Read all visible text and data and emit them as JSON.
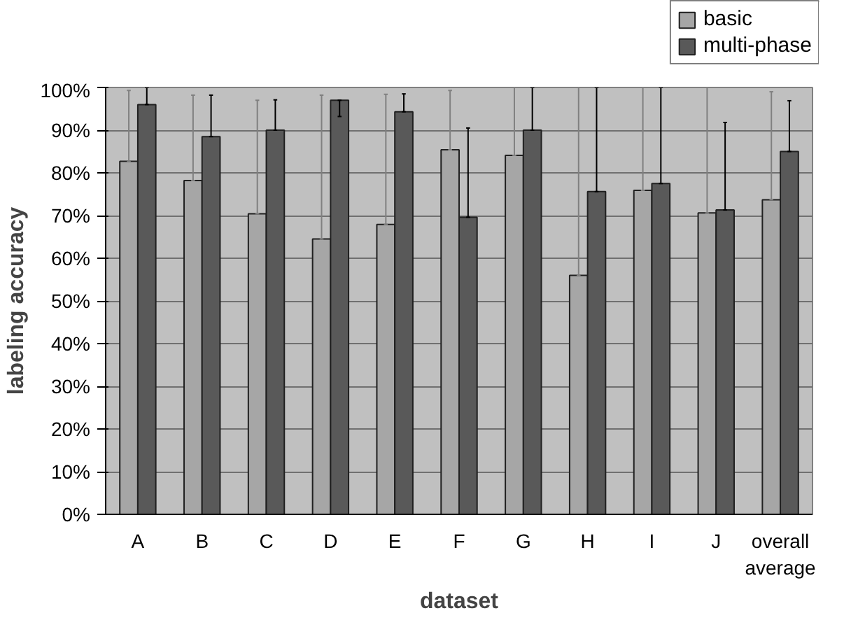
{
  "chart_data": {
    "type": "bar",
    "xlabel": "dataset",
    "ylabel": "labeling accuracy",
    "categories": [
      "A",
      "B",
      "C",
      "D",
      "E",
      "F",
      "G",
      "H",
      "I",
      "J",
      "overall average"
    ],
    "series": [
      {
        "name": "basic",
        "color": "#a6a6a6",
        "values": [
          82.7,
          78.2,
          70.4,
          64.5,
          67.9,
          85.4,
          84.1,
          56.0,
          75.9,
          70.6,
          73.7
        ],
        "errors": [
          [
            82.7,
            99.3
          ],
          [
            78.2,
            98.2
          ],
          [
            70.4,
            97.0
          ],
          [
            64.5,
            98.2
          ],
          [
            67.9,
            98.4
          ],
          [
            85.4,
            99.3
          ],
          [
            84.1,
            100
          ],
          [
            56.0,
            100
          ],
          [
            75.9,
            100
          ],
          [
            70.6,
            100
          ],
          [
            73.7,
            99.0
          ]
        ]
      },
      {
        "name": "multi-phase",
        "color": "#595959",
        "values": [
          96.0,
          88.5,
          90.0,
          97.0,
          94.3,
          69.6,
          90.0,
          75.6,
          77.5,
          71.3,
          85.0
        ],
        "errors": [
          [
            96.0,
            100
          ],
          [
            88.5,
            98.2
          ],
          [
            90.0,
            97.1
          ],
          [
            93.2,
            97.0
          ],
          [
            94.3,
            98.5
          ],
          [
            69.6,
            90.5
          ],
          [
            90.0,
            100
          ],
          [
            75.6,
            100
          ],
          [
            77.5,
            100
          ],
          [
            71.3,
            91.8
          ],
          [
            85.0,
            96.9
          ]
        ]
      }
    ],
    "ylim": [
      0,
      100
    ],
    "yticks": [
      {
        "value": 0,
        "label": "0%"
      },
      {
        "value": 10,
        "label": "10%"
      },
      {
        "value": 20,
        "label": "20%"
      },
      {
        "value": 30,
        "label": "30%"
      },
      {
        "value": 40,
        "label": "40%"
      },
      {
        "value": 50,
        "label": "50%"
      },
      {
        "value": 60,
        "label": "60%"
      },
      {
        "value": 70,
        "label": "70%"
      },
      {
        "value": 80,
        "label": "80%"
      },
      {
        "value": 90,
        "label": "90%"
      },
      {
        "value": 100,
        "label": "100%"
      }
    ],
    "grid": "y",
    "legend": "top right"
  }
}
